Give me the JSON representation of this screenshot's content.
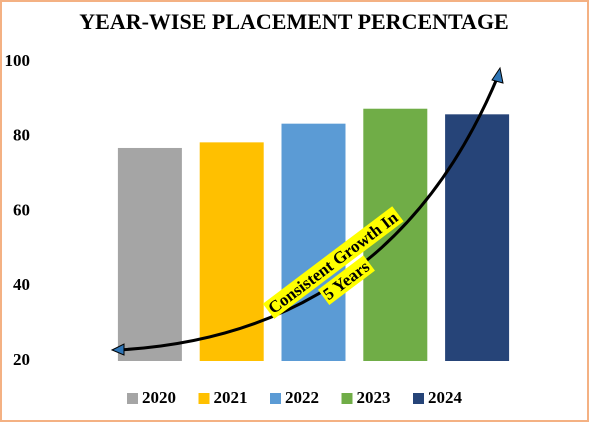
{
  "chart_data": {
    "type": "bar",
    "title": "YEAR-WISE PLACEMENT PERCENTAGE",
    "categories": [
      "2020",
      "2021",
      "2022",
      "2023",
      "2024"
    ],
    "values": [
      77,
      78.5,
      83.5,
      87.5,
      86
    ],
    "colors": [
      "#a5a5a5",
      "#ffc000",
      "#5b9bd5",
      "#70ad47",
      "#264478"
    ],
    "ylim": [
      20,
      100
    ],
    "yticks": [
      20,
      40,
      60,
      80,
      100
    ],
    "grid": false,
    "legend": "bottom",
    "annotation": [
      "Consistent Growth In",
      "5 Years"
    ]
  }
}
